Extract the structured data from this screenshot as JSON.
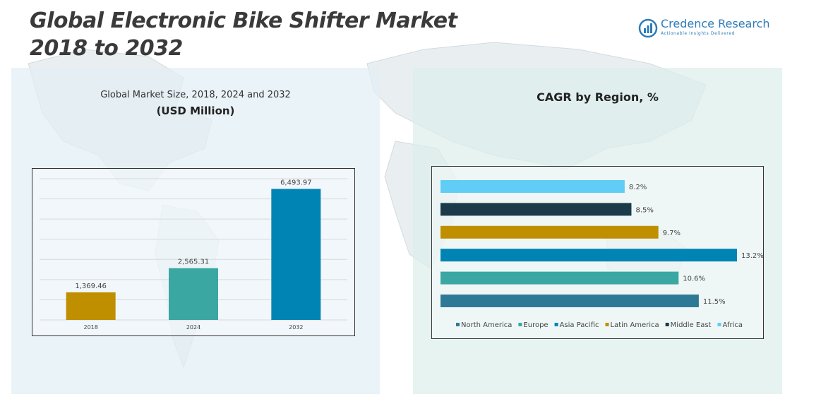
{
  "header": {
    "title_line1": "Global Electronic Bike Shifter Market",
    "title_line2": "2018 to 2032"
  },
  "logo": {
    "name": "Credence Research",
    "tagline": "Actionable Insights Delivered",
    "icon": "bar-chart-logo-icon",
    "color": "#2b7bb9"
  },
  "left_panel": {
    "subtitle": "Global Market Size, 2018, 2024 and 2032",
    "unit": "(USD Million)"
  },
  "right_panel": {
    "title": "CAGR by Region, %"
  },
  "chart_data": [
    {
      "type": "bar",
      "orientation": "vertical",
      "title": "Global Market Size, 2018, 2024 and 2032",
      "ylabel": "(USD Million)",
      "categories": [
        "2018",
        "2024",
        "2032"
      ],
      "values": [
        1369.46,
        2565.31,
        6493.97
      ],
      "value_labels": [
        "1,369.46",
        "2,565.31",
        "6,493.97"
      ],
      "colors": [
        "#bf8f00",
        "#3aa7a3",
        "#0084b4"
      ],
      "ylim": [
        0,
        7000
      ],
      "grid": true,
      "legend": "none"
    },
    {
      "type": "bar",
      "orientation": "horizontal",
      "title": "CAGR by Region, %",
      "categories": [
        "Africa",
        "Middle East",
        "Latin America",
        "Asia Pacific",
        "Europe",
        "North America"
      ],
      "values": [
        8.2,
        8.5,
        9.7,
        13.2,
        10.6,
        11.5
      ],
      "value_labels": [
        "8.2%",
        "8.5%",
        "9.7%",
        "13.2%",
        "10.6%",
        "11.5%"
      ],
      "colors": [
        "#5fcdf5",
        "#1b3a4a",
        "#bf8f00",
        "#0084b4",
        "#3aa7a3",
        "#2e7a96"
      ],
      "xlim": [
        0,
        13.2
      ],
      "grid": false,
      "legend": "bottom",
      "legend_entries": [
        {
          "name": "North America",
          "color": "#2e7a96"
        },
        {
          "name": "Europe",
          "color": "#3aa7a3"
        },
        {
          "name": "Asia Pacific",
          "color": "#0084b4"
        },
        {
          "name": "Latin America",
          "color": "#bf8f00"
        },
        {
          "name": "Middle East",
          "color": "#1b3a4a"
        },
        {
          "name": "Africa",
          "color": "#5fcdf5"
        }
      ]
    }
  ]
}
